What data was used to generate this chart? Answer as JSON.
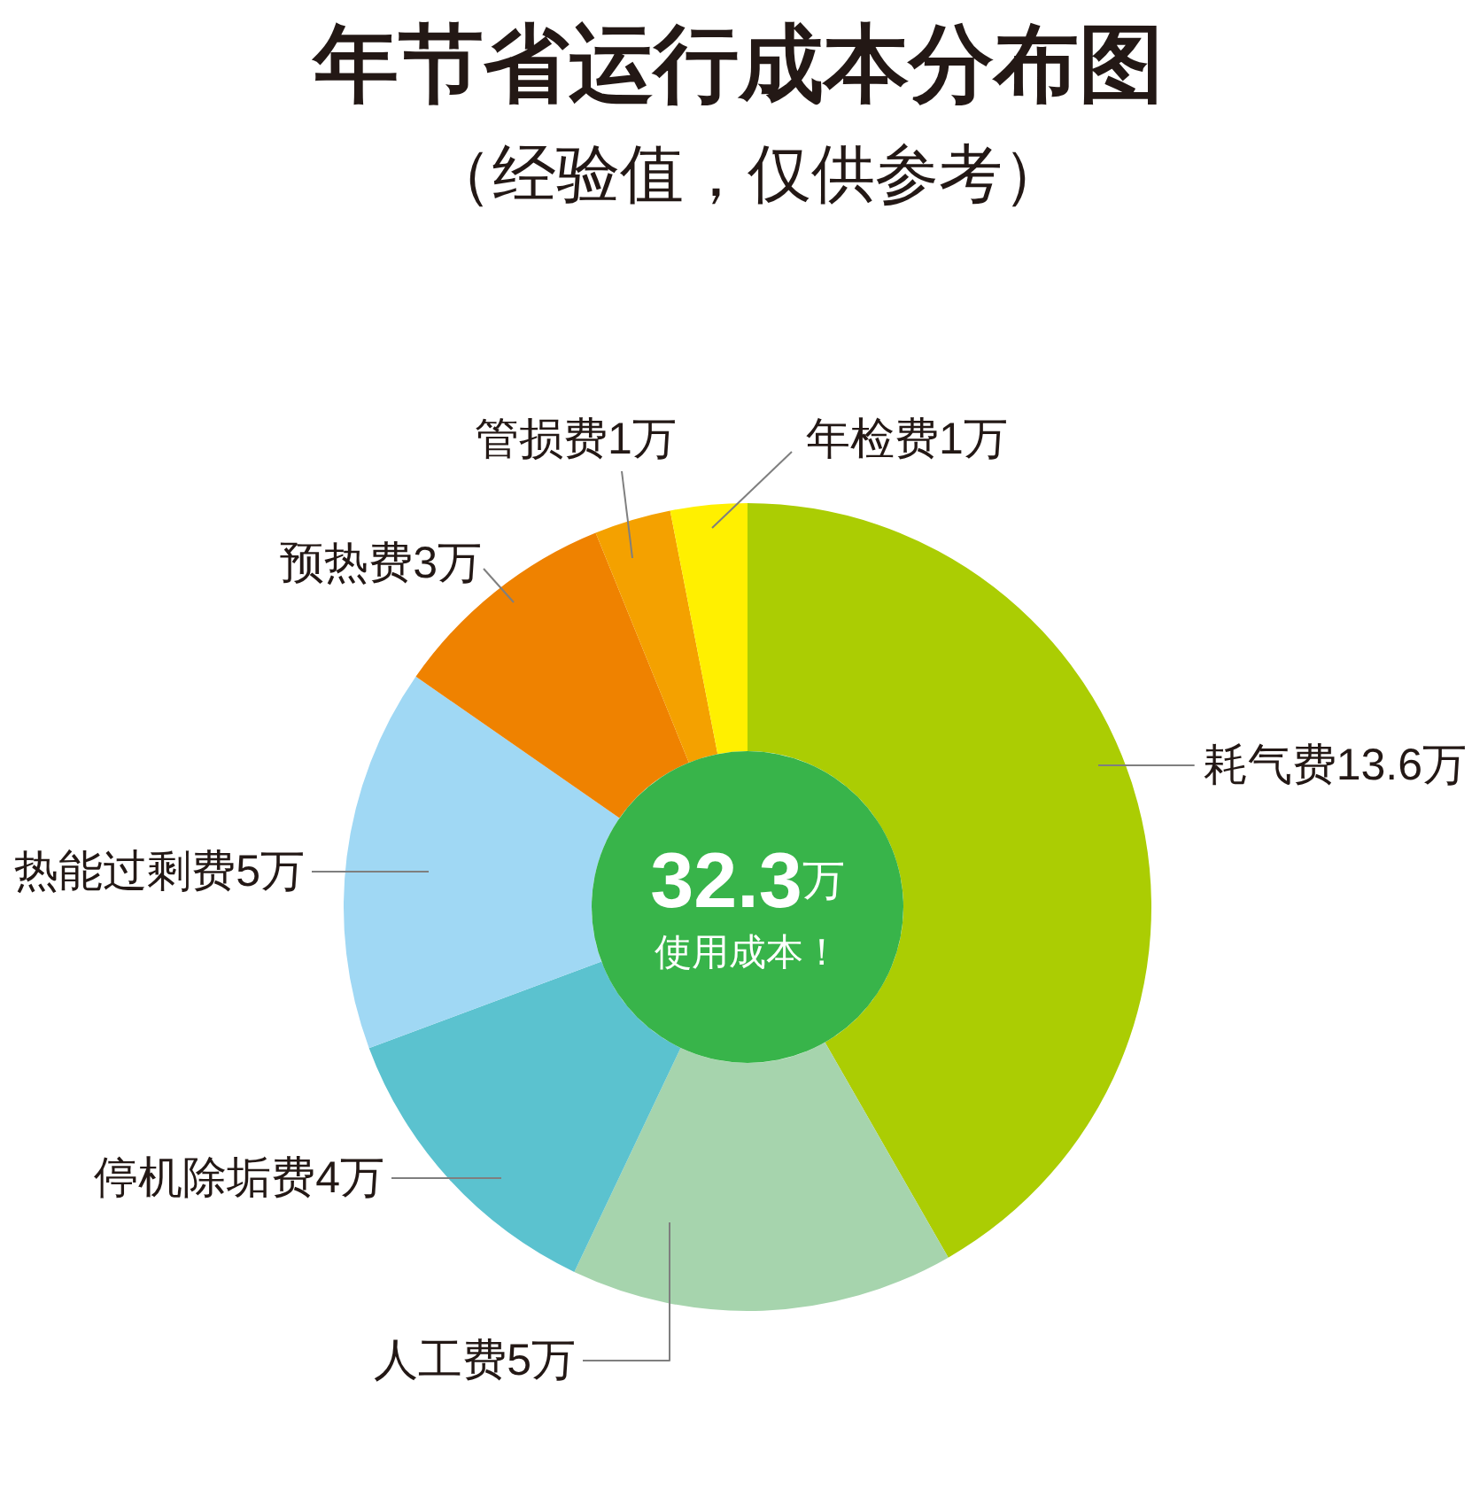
{
  "chart_data": {
    "type": "donut",
    "title": "年节省运行成本分布图",
    "subtitle": "（经验值，仅供参考）",
    "categories": [
      "耗气费",
      "人工费",
      "停机除垢费",
      "热能过剩费",
      "预热费",
      "管损费",
      "年检费"
    ],
    "values": [
      13.6,
      5,
      4,
      5,
      3,
      1,
      1
    ],
    "value_labels": [
      "13.6万",
      "5万",
      "4万",
      "5万",
      "3万",
      "1万",
      "1万"
    ],
    "colors": [
      "#abcd03",
      "#a6d4ad",
      "#5bc2cf",
      "#a0d8f4",
      "#ef8200",
      "#f4a100",
      "#fff000"
    ],
    "annotations": [
      "32.3万",
      "使用成本！"
    ]
  }
}
